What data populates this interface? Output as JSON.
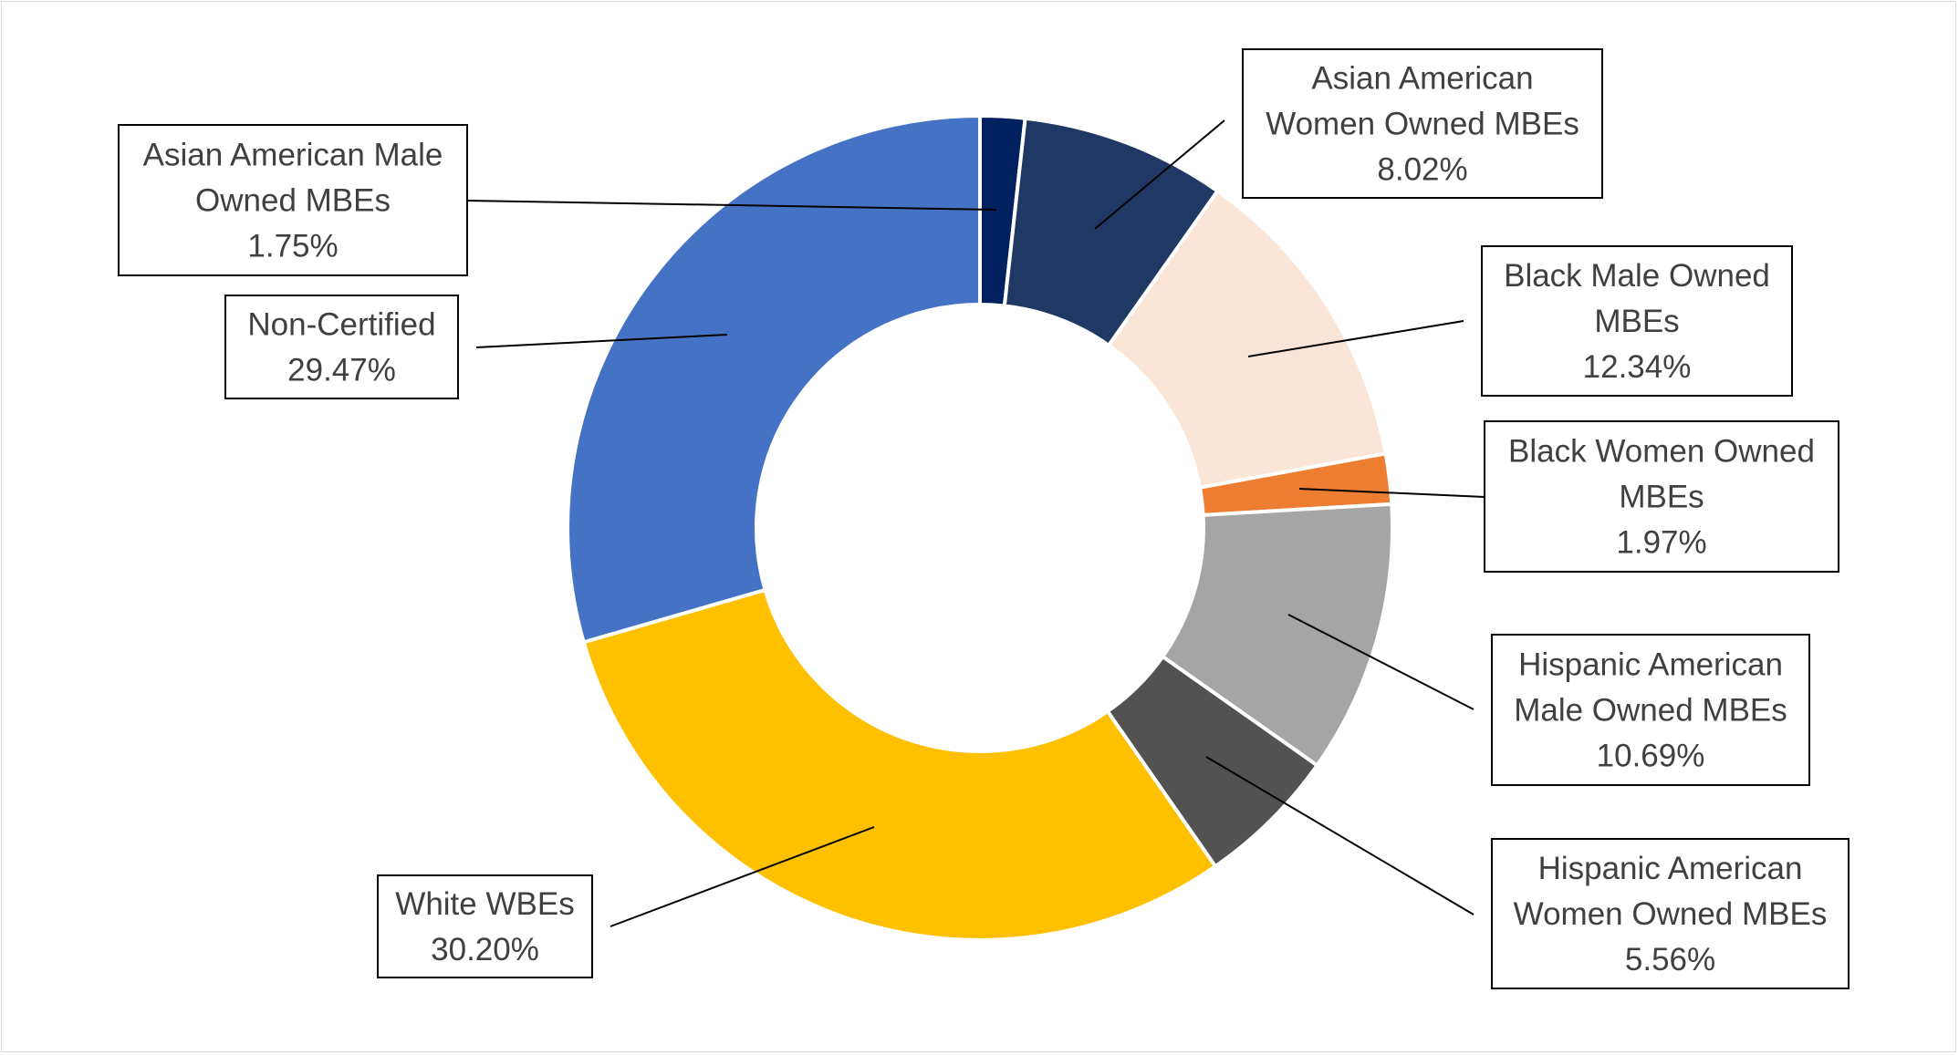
{
  "chart_data": {
    "type": "donut",
    "title": "",
    "legend": "none",
    "slices": [
      {
        "name": "Asian American Male Owned MBEs",
        "value": 1.75,
        "label": "1.75%",
        "color": "#002060"
      },
      {
        "name": "Asian American Women Owned MBEs",
        "value": 8.02,
        "label": "8.02%",
        "color": "#203864"
      },
      {
        "name": "Black Male Owned MBEs",
        "value": 12.34,
        "label": "12.34%",
        "color": "#fbe5d6"
      },
      {
        "name": "Black Women Owned MBEs",
        "value": 1.97,
        "label": "1.97%",
        "color": "#ed7d31"
      },
      {
        "name": "Hispanic American Male Owned MBEs",
        "value": 10.69,
        "label": "10.69%",
        "color": "#a5a5a5"
      },
      {
        "name": "Hispanic American Women Owned MBEs",
        "value": 5.56,
        "label": "5.56%",
        "color": "#525252"
      },
      {
        "name": "White WBEs",
        "value": 30.2,
        "label": "30.20%",
        "color": "#ffc000"
      },
      {
        "name": "Non-Certified",
        "value": 29.47,
        "label": "29.47%",
        "color": "#4472c4"
      }
    ]
  }
}
